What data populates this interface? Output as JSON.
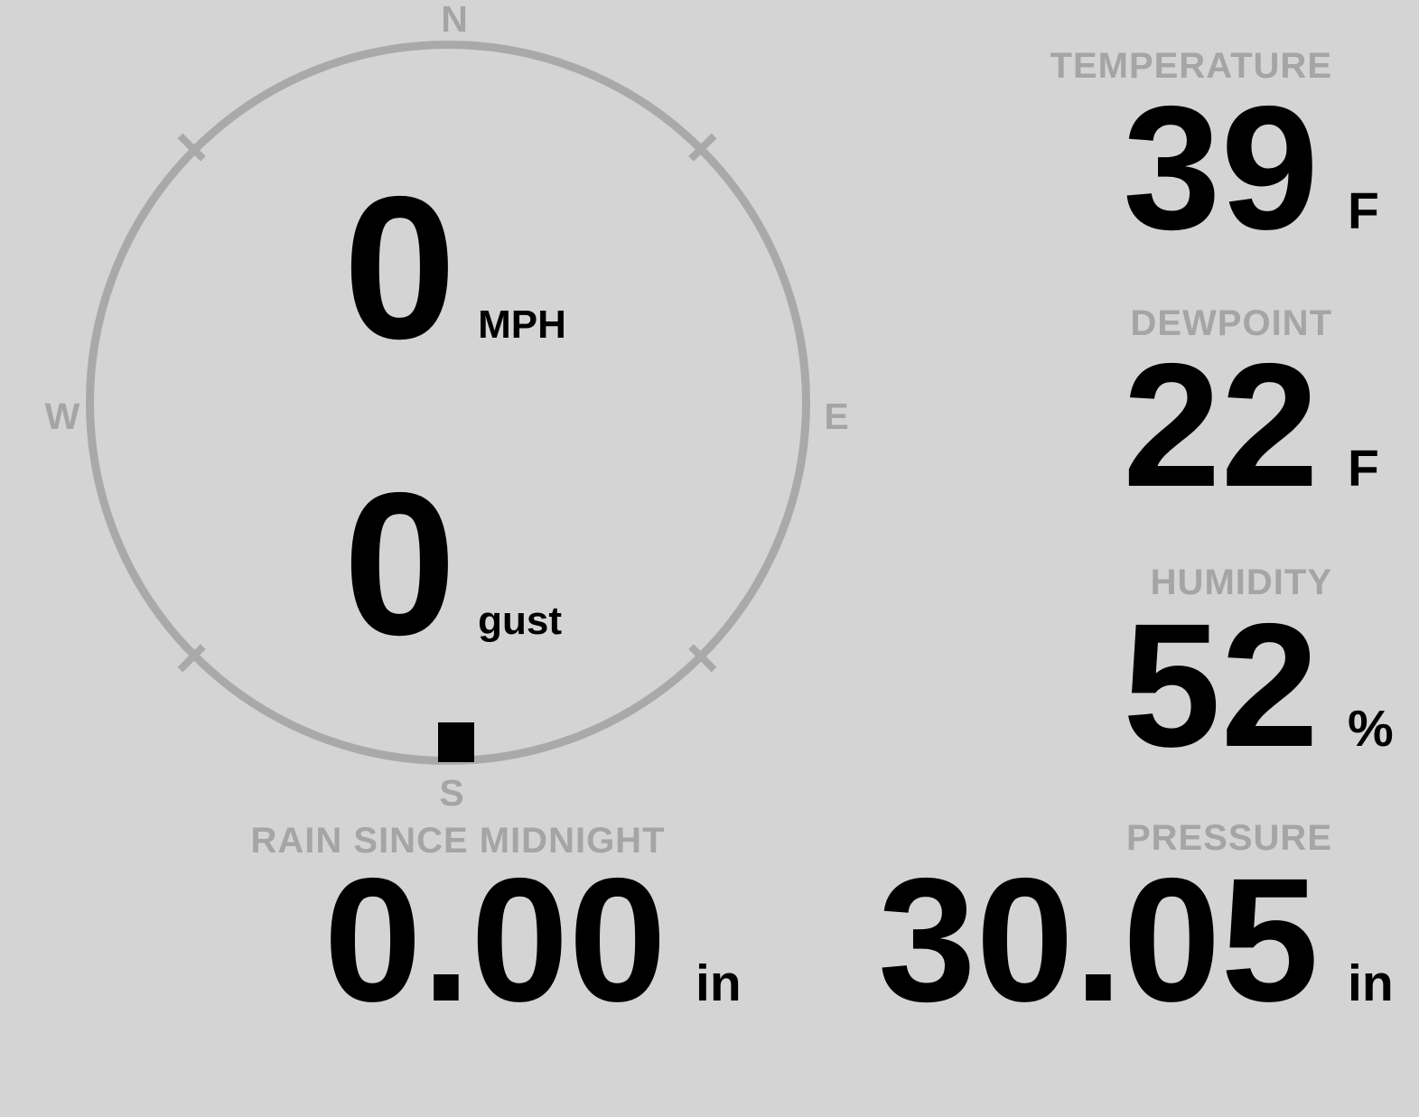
{
  "colors": {
    "background": "#d4d4d4",
    "muted_gray": "#a5a5a5",
    "circle_gray": "#a9a9a9",
    "ink": "#000000"
  },
  "compass": {
    "cardinals": {
      "north": "N",
      "east": "E",
      "south": "S",
      "west": "W"
    },
    "wind": {
      "speed": "0",
      "speed_unit": "MPH",
      "gust": "0",
      "gust_unit": "gust",
      "direction_degrees": 180
    }
  },
  "metrics": [
    {
      "label": "TEMPERATURE",
      "value": "39",
      "unit": "F"
    },
    {
      "label": "DEWPOINT",
      "value": "22",
      "unit": "F"
    },
    {
      "label": "HUMIDITY",
      "value": "52",
      "unit": "%"
    }
  ],
  "footer_metrics": [
    {
      "label": "RAIN SINCE MIDNIGHT",
      "value": "0.00",
      "unit": "in"
    },
    {
      "label": "PRESSURE",
      "value": "30.05",
      "unit": "in"
    }
  ]
}
